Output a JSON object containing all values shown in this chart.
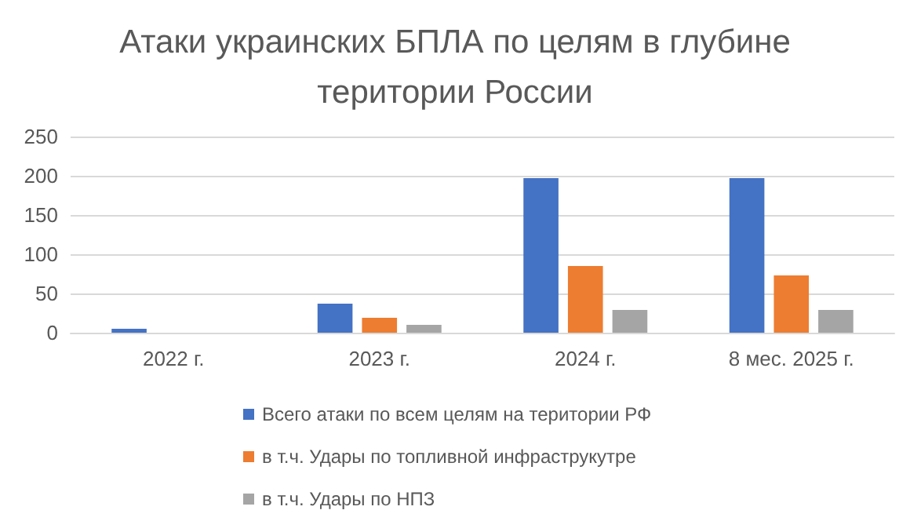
{
  "chart_data": {
    "type": "bar",
    "title": "Атаки украинских БПЛА по целям в глубине\nтеритории России",
    "categories": [
      "2022 г.",
      "2023 г.",
      "2024 г.",
      "8 мес. 2025 г."
    ],
    "series": [
      {
        "name": "Всего атаки по всем целям на територии РФ",
        "color": "#4472c4",
        "values": [
          5,
          37,
          197,
          197
        ]
      },
      {
        "name": "в т.ч. Удары по топливной инфраструкутре",
        "color": "#ed7d31",
        "values": [
          0,
          19,
          85,
          73
        ]
      },
      {
        "name": "в т.ч. Удары по НПЗ",
        "color": "#a5a5a5",
        "values": [
          0,
          10,
          29,
          29
        ]
      }
    ],
    "ylim": [
      0,
      250
    ],
    "yticks": [
      0,
      50,
      100,
      150,
      200,
      250
    ],
    "grid": "y",
    "legend": "bottom"
  }
}
